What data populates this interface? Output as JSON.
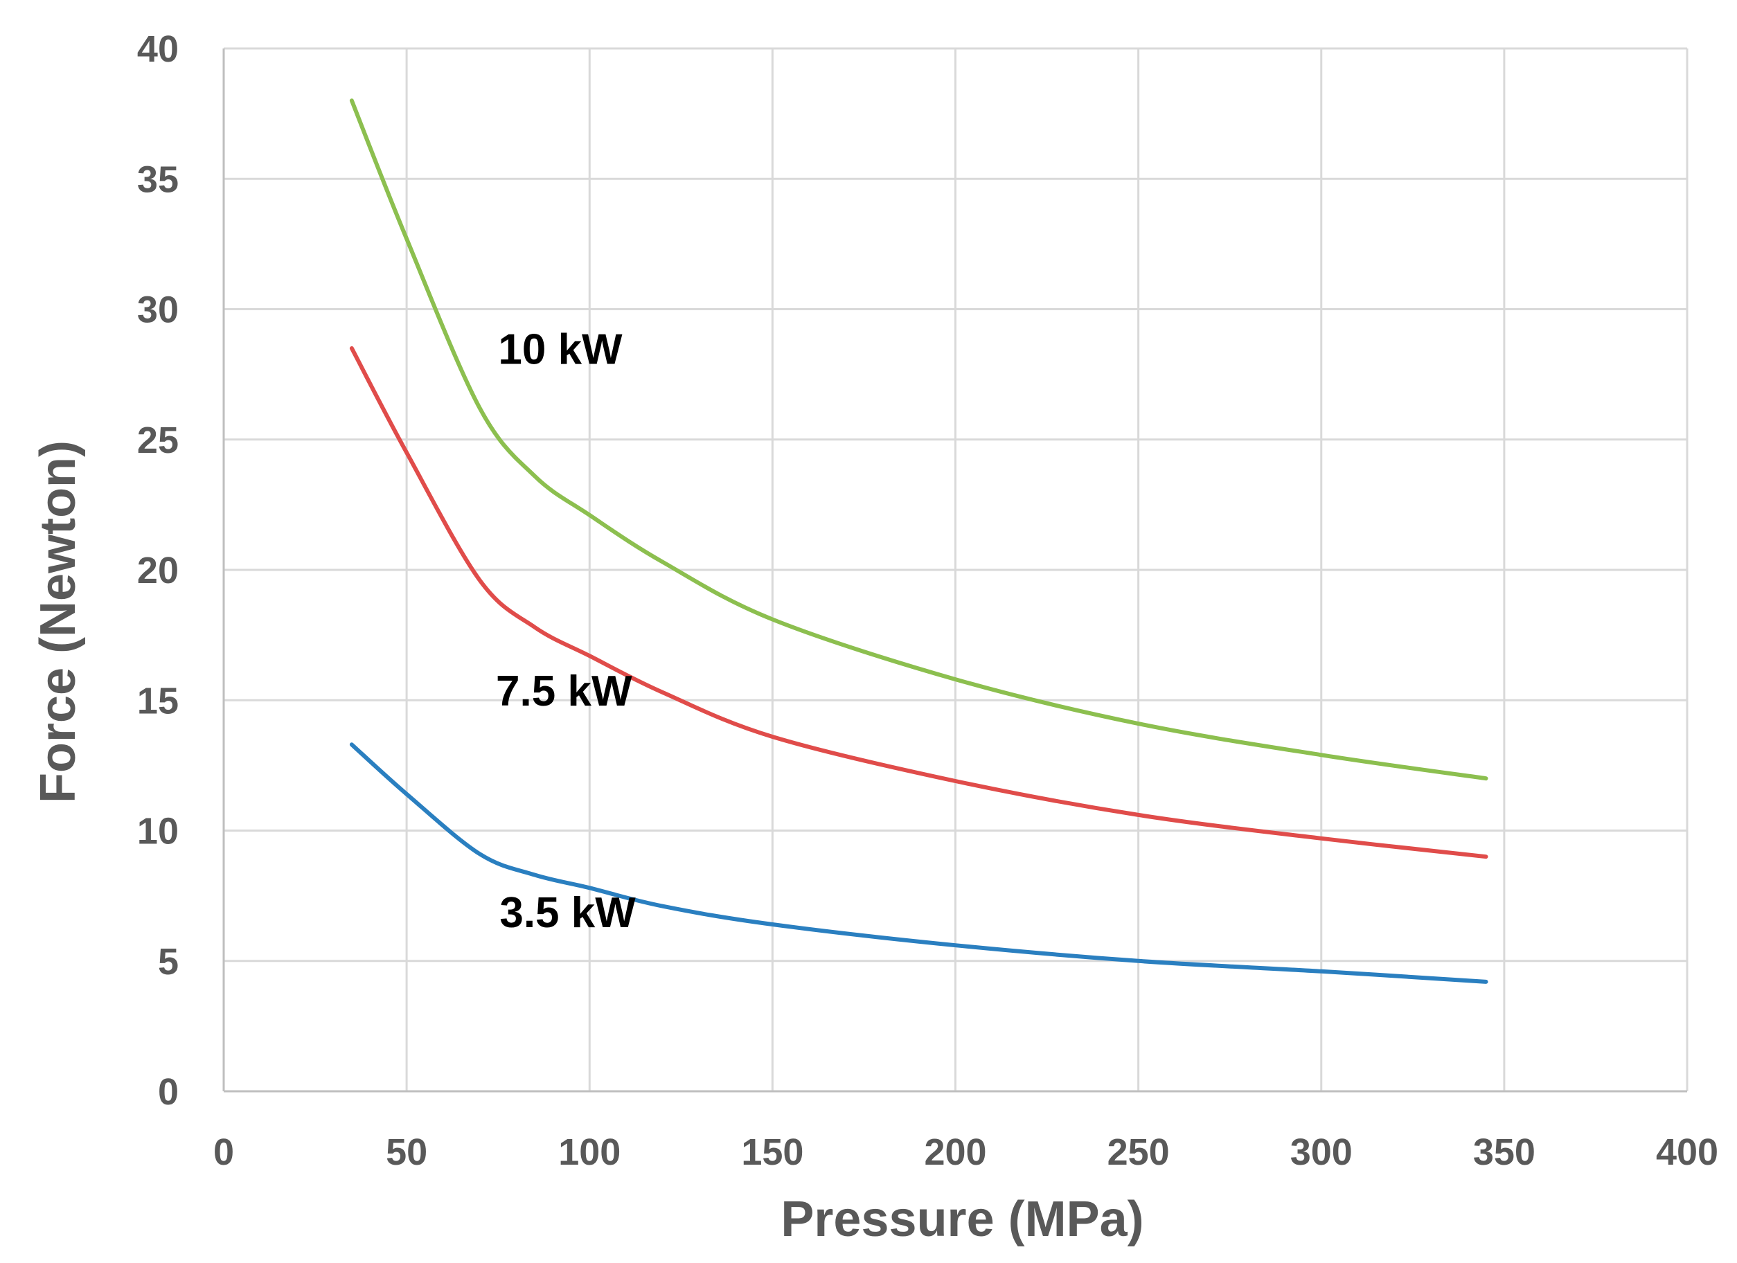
{
  "chart_data": {
    "type": "line",
    "title": "",
    "xlabel": "Pressure (MPa)",
    "ylabel": "Force (Newton)",
    "xlim": [
      0,
      400
    ],
    "ylim": [
      0,
      40
    ],
    "x_ticks": [
      0,
      50,
      100,
      150,
      200,
      250,
      300,
      350,
      400
    ],
    "y_ticks": [
      0,
      5,
      10,
      15,
      20,
      25,
      30,
      35,
      40
    ],
    "grid": true,
    "legend": "none (inline labels)",
    "x": [
      35,
      50,
      70,
      85,
      100,
      120,
      150,
      200,
      250,
      300,
      345
    ],
    "series": [
      {
        "name": "10 kW",
        "label": "10 kW",
        "color": "#8cbf4f",
        "values": [
          38.0,
          32.7,
          26.2,
          23.6,
          22.1,
          20.3,
          18.1,
          15.8,
          14.1,
          12.9,
          12.0
        ]
      },
      {
        "name": "7.5 kW",
        "label": "7.5 kW",
        "color": "#e04c4a",
        "values": [
          28.5,
          24.5,
          19.6,
          17.8,
          16.7,
          15.3,
          13.6,
          11.9,
          10.6,
          9.7,
          9.0
        ]
      },
      {
        "name": "3.5 kW",
        "label": "3.5 kW",
        "color": "#2a7fc0",
        "values": [
          13.3,
          11.4,
          9.1,
          8.3,
          7.8,
          7.1,
          6.4,
          5.6,
          5.0,
          4.6,
          4.2
        ]
      }
    ],
    "annotations": [
      {
        "series": "10 kW",
        "x": 92,
        "y": 27.9
      },
      {
        "series": "7.5 kW",
        "x": 93,
        "y": 14.8
      },
      {
        "series": "3.5 kW",
        "x": 94,
        "y": 6.3
      }
    ]
  }
}
